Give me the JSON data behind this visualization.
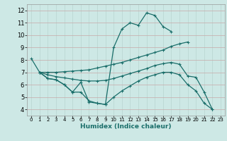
{
  "xlabel": "Humidex (Indice chaleur)",
  "xlim": [
    -0.5,
    23.5
  ],
  "ylim": [
    3.5,
    12.5
  ],
  "xticks": [
    0,
    1,
    2,
    3,
    4,
    5,
    6,
    7,
    8,
    9,
    10,
    11,
    12,
    13,
    14,
    15,
    16,
    17,
    18,
    19,
    20,
    21,
    22,
    23
  ],
  "yticks": [
    4,
    5,
    6,
    7,
    8,
    9,
    10,
    11,
    12
  ],
  "bg_color": "#cde8e5",
  "line_color": "#1a6e6a",
  "grid_color_v": "#c4dbd8",
  "grid_color_h": "#d8b8b8",
  "line1_x": [
    0,
    1,
    2,
    3,
    4,
    5,
    6,
    7,
    8,
    9,
    10,
    11,
    12,
    13,
    14,
    15,
    16,
    17
  ],
  "line1_y": [
    8.1,
    7.0,
    6.5,
    6.4,
    6.0,
    5.4,
    6.2,
    4.6,
    4.5,
    4.4,
    9.0,
    10.5,
    11.0,
    10.8,
    11.8,
    11.6,
    10.7,
    10.3
  ],
  "line2_x": [
    1,
    2,
    3,
    4,
    5,
    6,
    7,
    8,
    9,
    10,
    11,
    12,
    13,
    14,
    15,
    16,
    17,
    18,
    19
  ],
  "line2_y": [
    7.0,
    7.0,
    7.0,
    7.05,
    7.1,
    7.15,
    7.2,
    7.35,
    7.5,
    7.65,
    7.8,
    8.0,
    8.2,
    8.4,
    8.6,
    8.8,
    9.1,
    9.3,
    9.45
  ],
  "line3_x": [
    1,
    2,
    3,
    4,
    5,
    6,
    7,
    8,
    9,
    10,
    11,
    12,
    13,
    14,
    15,
    16,
    17,
    18,
    19,
    20,
    21,
    22
  ],
  "line3_y": [
    7.0,
    6.8,
    6.65,
    6.55,
    6.45,
    6.35,
    6.3,
    6.3,
    6.35,
    6.5,
    6.7,
    6.9,
    7.1,
    7.3,
    7.55,
    7.7,
    7.8,
    7.65,
    6.7,
    6.6,
    5.4,
    4.0
  ],
  "line4_x": [
    1,
    2,
    3,
    4,
    5,
    6,
    7,
    8,
    9,
    10,
    11,
    12,
    13,
    14,
    15,
    16,
    17,
    18,
    19,
    20,
    21,
    22
  ],
  "line4_y": [
    7.0,
    6.5,
    6.4,
    6.0,
    5.4,
    5.4,
    4.7,
    4.5,
    4.4,
    5.0,
    5.5,
    5.9,
    6.3,
    6.6,
    6.8,
    7.0,
    7.0,
    6.8,
    6.0,
    5.5,
    4.5,
    4.0
  ]
}
